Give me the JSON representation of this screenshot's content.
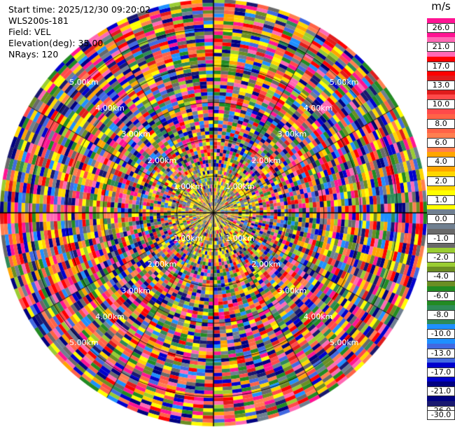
{
  "info": {
    "start_time": "Start time: 2025/12/30 09:20:02",
    "station": "WLS200s-181",
    "field": "Field: VEL",
    "elevation": "Elevation(deg): 35.00",
    "nrays": "NRays: 120"
  },
  "colorbar": {
    "unit": "m/s",
    "ticks": [
      "26.0",
      "21.0",
      "17.0",
      "13.0",
      "10.0",
      "8.0",
      "6.0",
      "4.0",
      "2.0",
      "1.0",
      "0.0",
      "-1.0",
      "-2.0",
      "-4.0",
      "-6.0",
      "-8.0",
      "-10.0",
      "-13.0",
      "-17.0",
      "-21.0",
      "-26.0",
      "-30.0"
    ],
    "colors": [
      "#ff1493",
      "#ff69b4",
      "#ff0000",
      "#e01c1c",
      "#ff4a4a",
      "#ff6347",
      "#ff7f50",
      "#ffa500",
      "#ffd700",
      "#ffff00",
      "#708090",
      "#696969",
      "#9acd32",
      "#6b8e23",
      "#228b22",
      "#2e8b57",
      "#1e90ff",
      "#4169e1",
      "#0000cd",
      "#000080",
      "#191970"
    ]
  },
  "chart_data": {
    "type": "ppi",
    "field": "VEL",
    "unit": "m/s",
    "elevation_deg": 35.0,
    "nrays": 120,
    "range_ring_labels": [
      "1.00km",
      "2.00km",
      "3.00km",
      "4.00km",
      "5.00km"
    ],
    "range_rings_km": [
      1,
      2,
      3,
      4,
      5
    ],
    "max_range_km": 5.8,
    "colorbar_bounds": [
      -30.0,
      -26.0,
      -21.0,
      -17.0,
      -13.0,
      -10.0,
      -8.0,
      -6.0,
      -4.0,
      -2.0,
      -1.0,
      0.0,
      1.0,
      2.0,
      4.0,
      6.0,
      8.0,
      10.0,
      13.0,
      17.0,
      21.0,
      26.0
    ]
  }
}
